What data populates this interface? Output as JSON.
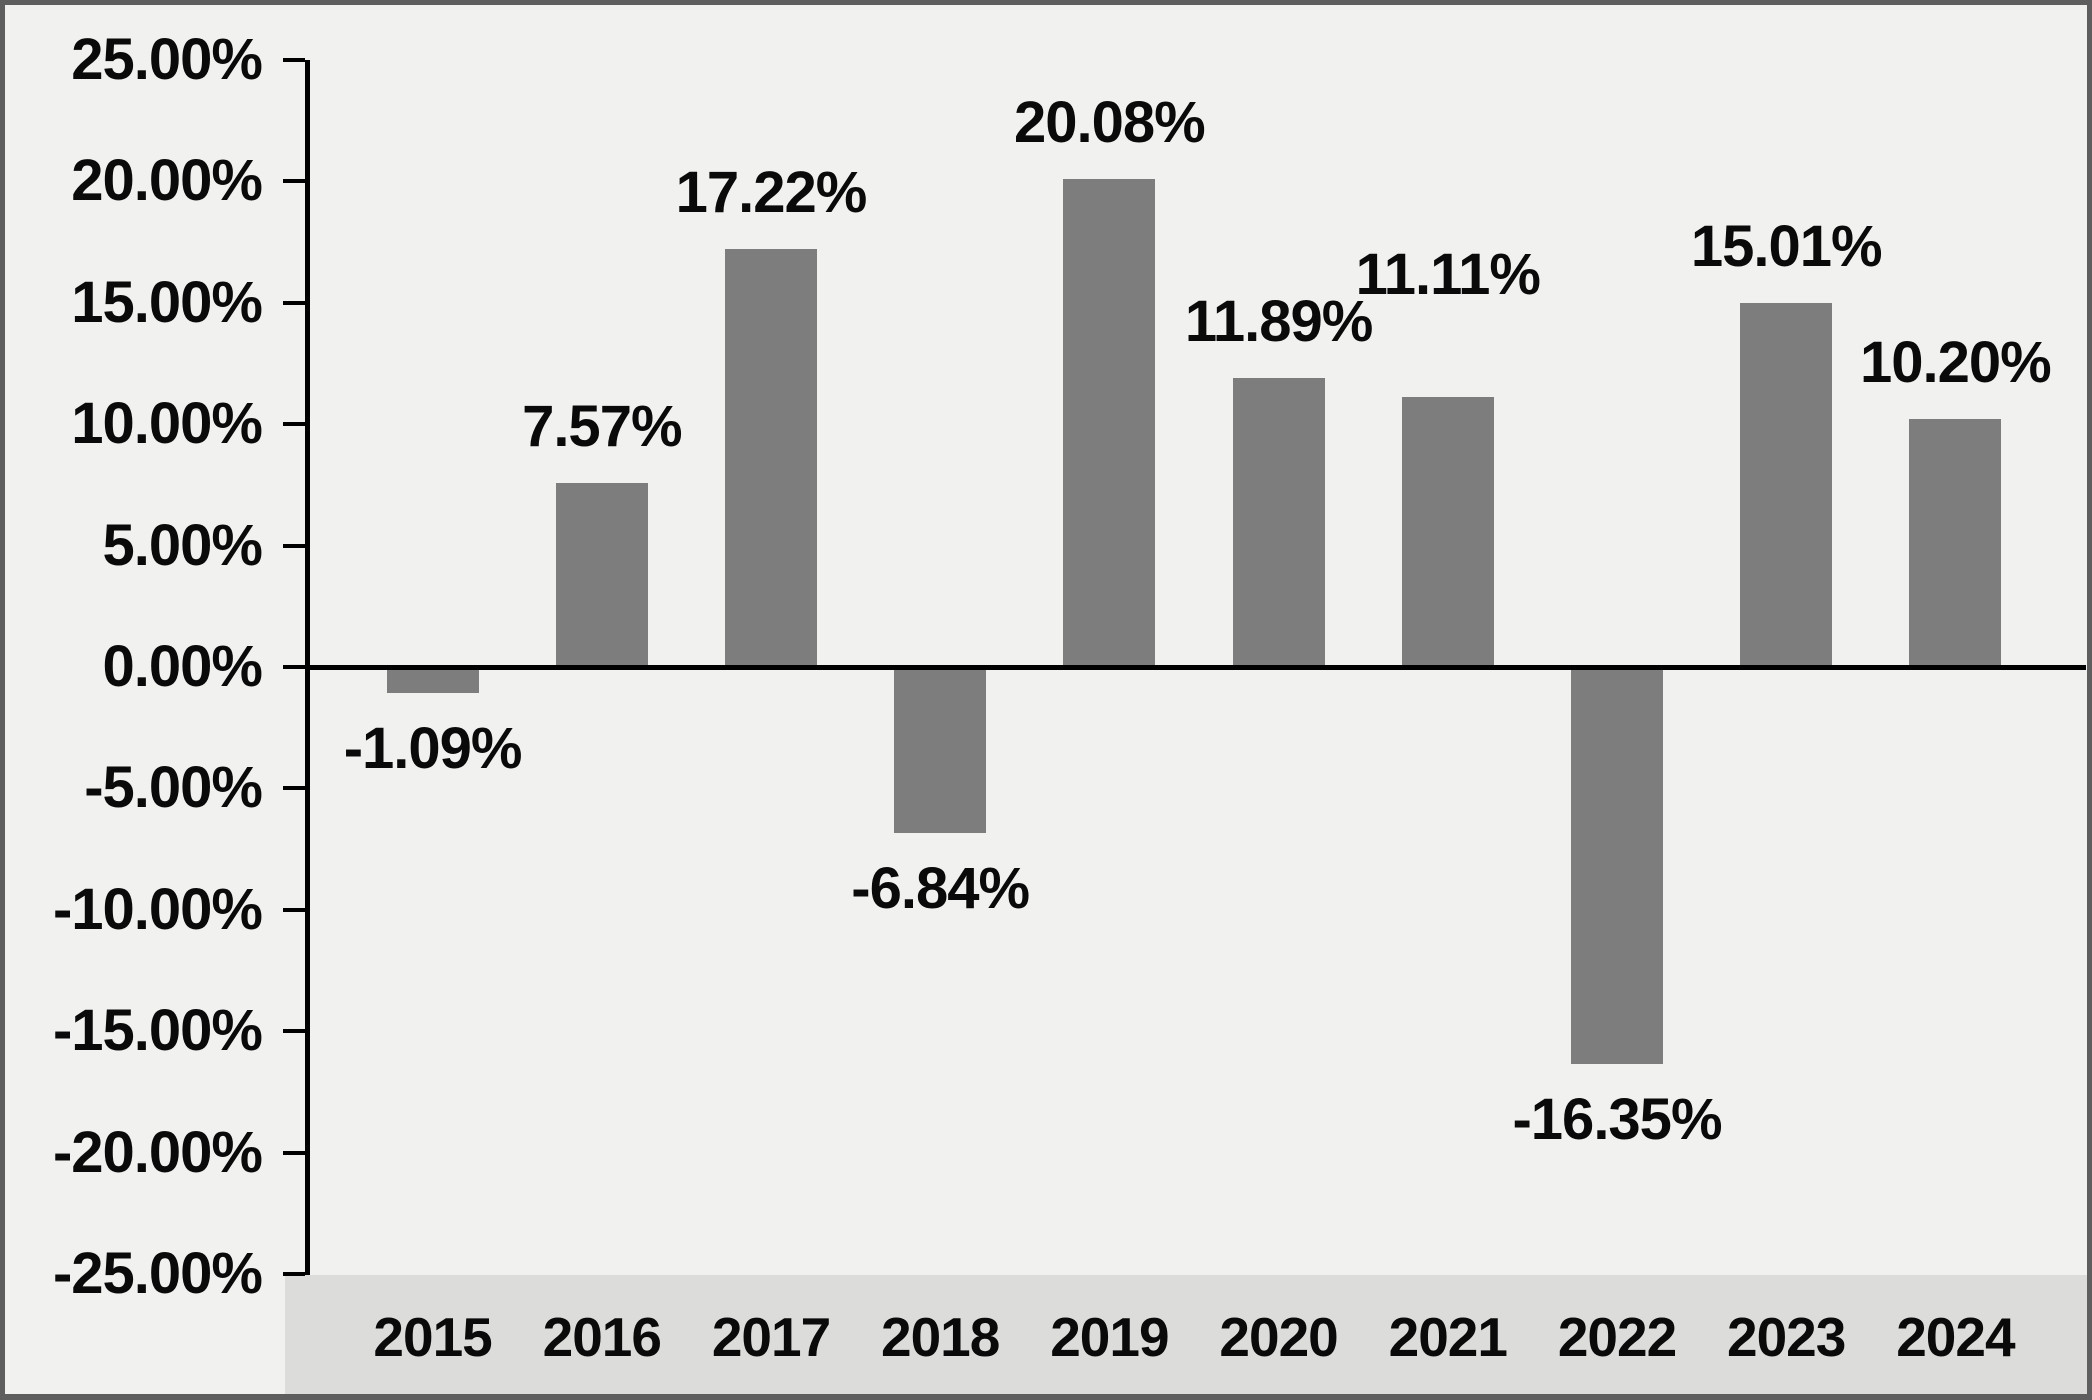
{
  "chart_data": {
    "type": "bar",
    "title": "",
    "xlabel": "",
    "ylabel": "",
    "categories": [
      "2015",
      "2016",
      "2017",
      "2018",
      "2019",
      "2020",
      "2021",
      "2022",
      "2023",
      "2024"
    ],
    "values": [
      -1.09,
      7.57,
      17.22,
      -6.84,
      20.08,
      11.89,
      11.11,
      -16.35,
      15.01,
      10.2
    ],
    "value_labels": [
      "-1.09%",
      "7.57%",
      "17.22%",
      "-6.84%",
      "20.08%",
      "11.89%",
      "11.11%",
      "-16.35%",
      "15.01%",
      "10.20%"
    ],
    "ylim": [
      -25,
      25
    ],
    "ytick_step": 5,
    "ytick_values": [
      25,
      20,
      15,
      10,
      5,
      0,
      -5,
      -10,
      -15,
      -20,
      -25
    ],
    "ytick_labels": [
      "25.00%",
      "20.00%",
      "15.00%",
      "10.00%",
      "5.00%",
      "0.00%",
      "-5.00%",
      "-10.00%",
      "-15.00%",
      "-20.00%",
      "-25.00%"
    ],
    "grid": false,
    "legend": null,
    "staggered_labels": [
      "2021"
    ],
    "colors": {
      "bar": "#7d7d7d",
      "background": "#f1f1ef",
      "category_band": "#dcdcda",
      "axis": "#000000",
      "text": "#0a0a0a",
      "border": "#5e5e5e"
    }
  }
}
